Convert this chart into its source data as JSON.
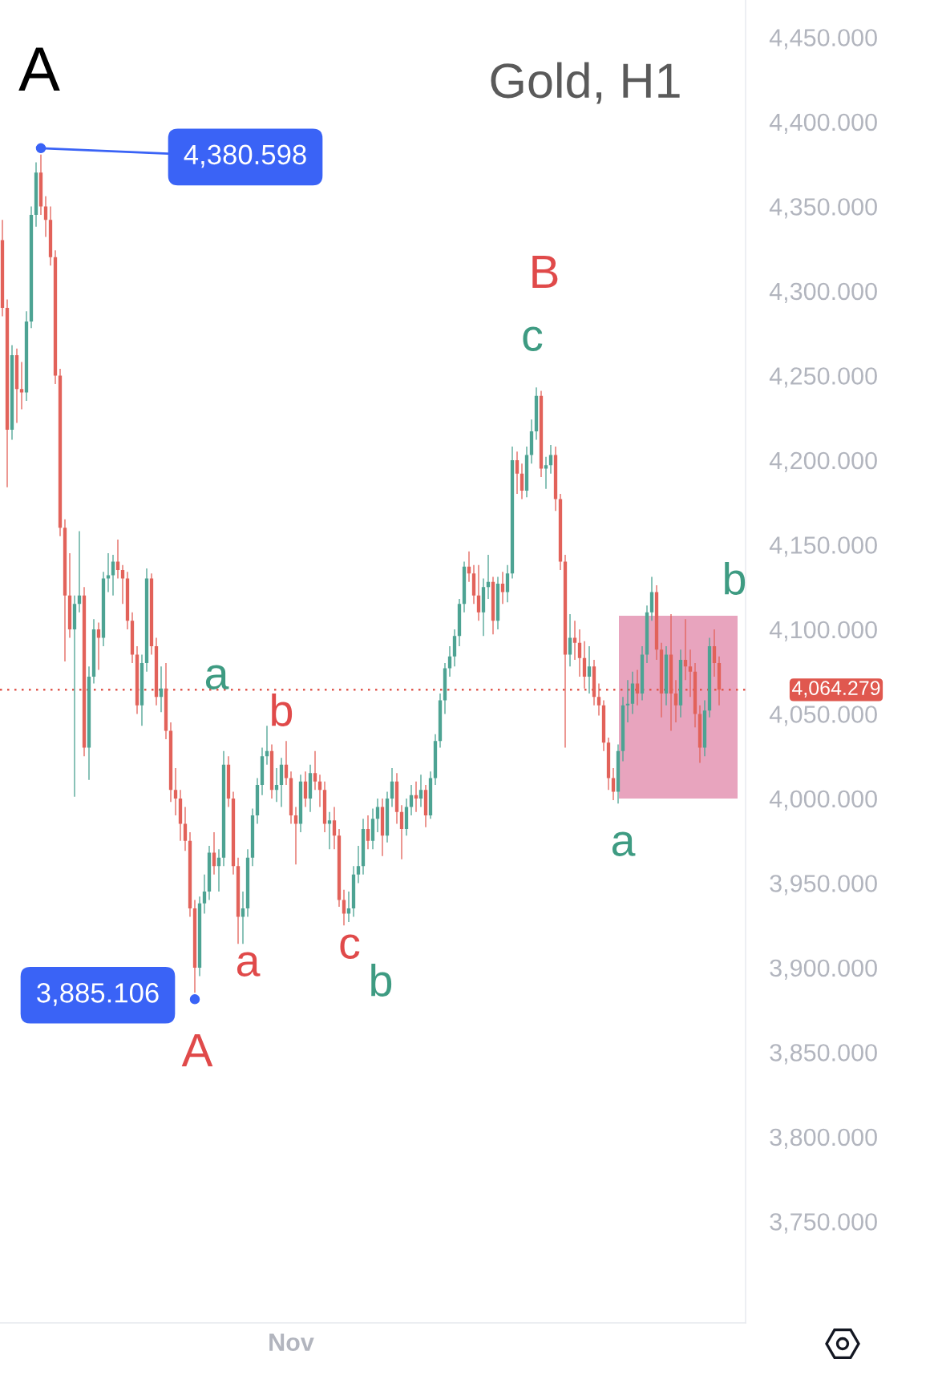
{
  "chart_data": {
    "type": "candlestick",
    "title": "Gold, H1",
    "categories": [
      null,
      null,
      null,
      null,
      null,
      null,
      null,
      null,
      null,
      null,
      null,
      null,
      null,
      null,
      null,
      null,
      null,
      null,
      null,
      null,
      null,
      null,
      null,
      null,
      null,
      null,
      null,
      null,
      null,
      null,
      null,
      null,
      null,
      null,
      null,
      null,
      null,
      null,
      null,
      null,
      null,
      null,
      null,
      null,
      null,
      null,
      null,
      null,
      null,
      null,
      null,
      null,
      null,
      null,
      null,
      null,
      null,
      null,
      null,
      null,
      "Nov",
      null,
      null,
      null,
      null,
      null,
      null,
      null,
      null,
      null,
      null,
      null,
      null,
      null,
      null,
      null,
      null,
      null,
      null,
      null,
      null,
      null,
      null,
      null,
      null,
      null,
      null,
      null,
      null,
      null,
      null,
      null,
      null,
      null,
      null,
      null,
      null,
      null,
      null,
      null,
      null,
      null,
      null,
      null,
      null,
      null,
      null,
      null,
      null,
      null,
      null,
      null,
      null,
      null,
      null,
      null,
      null,
      null,
      null,
      null,
      null,
      null,
      null,
      null,
      null,
      null,
      null,
      null,
      null,
      null,
      null,
      null,
      null,
      null,
      null,
      null,
      null,
      null,
      null,
      null,
      null,
      null,
      null,
      null,
      null,
      null,
      null,
      null,
      null,
      null
    ],
    "ohlc": [
      [
        4330,
        4342,
        4285,
        4290
      ],
      [
        4290,
        4295,
        4184,
        4218
      ],
      [
        4218,
        4268,
        4212,
        4262
      ],
      [
        4262,
        4266,
        4222,
        4242
      ],
      [
        4242,
        4258,
        4230,
        4240
      ],
      [
        4240,
        4288,
        4235,
        4282
      ],
      [
        4282,
        4350,
        4278,
        4345
      ],
      [
        4345,
        4376,
        4338,
        4370
      ],
      [
        4370,
        4380.598,
        4345,
        4350
      ],
      [
        4350,
        4356,
        4332,
        4342
      ],
      [
        4342,
        4350,
        4315,
        4320
      ],
      [
        4320,
        4324,
        4245,
        4250
      ],
      [
        4250,
        4254,
        4155,
        4160
      ],
      [
        4160,
        4165,
        4081,
        4120
      ],
      [
        4120,
        4145,
        4095,
        4100
      ],
      [
        4100,
        4120,
        4001,
        4115
      ],
      [
        4115,
        4158,
        4110,
        4120
      ],
      [
        4120,
        4125,
        4025,
        4030
      ],
      [
        4030,
        4078,
        4011,
        4072
      ],
      [
        4072,
        4106,
        4068,
        4100
      ],
      [
        4100,
        4104,
        4076,
        4095
      ],
      [
        4095,
        4134,
        4090,
        4130
      ],
      [
        4130,
        4145,
        4122,
        4132
      ],
      [
        4132,
        4144,
        4120,
        4140
      ],
      [
        4140,
        4153,
        4130,
        4135
      ],
      [
        4135,
        4138,
        4115,
        4130
      ],
      [
        4130,
        4134,
        4100,
        4105
      ],
      [
        4105,
        4110,
        4080,
        4085
      ],
      [
        4085,
        4090,
        4050,
        4055
      ],
      [
        4055,
        4085,
        4043,
        4080
      ],
      [
        4080,
        4136,
        4075,
        4130
      ],
      [
        4130,
        4133,
        4085,
        4090
      ],
      [
        4090,
        4095,
        4055,
        4060
      ],
      [
        4060,
        4078,
        4051,
        4065
      ],
      [
        4065,
        4080,
        4035,
        4040
      ],
      [
        4040,
        4045,
        3998,
        4005
      ],
      [
        4005,
        4018,
        3990,
        4000
      ],
      [
        4000,
        4005,
        3975,
        3985
      ],
      [
        3985,
        3995,
        3969,
        3975
      ],
      [
        3975,
        3980,
        3930,
        3935
      ],
      [
        3935,
        3940,
        3885.106,
        3900
      ],
      [
        3900,
        3942,
        3895,
        3938
      ],
      [
        3938,
        3955,
        3932,
        3945
      ],
      [
        3945,
        3972,
        3940,
        3968
      ],
      [
        3968,
        3980,
        3955,
        3960
      ],
      [
        3960,
        3970,
        3945,
        3965
      ],
      [
        3965,
        4028,
        3960,
        4020
      ],
      [
        4020,
        4025,
        3995,
        4000
      ],
      [
        4000,
        4004,
        3955,
        3960
      ],
      [
        3960,
        3965,
        3914,
        3930
      ],
      [
        3930,
        3945,
        3914,
        3935
      ],
      [
        3935,
        3970,
        3930,
        3965
      ],
      [
        3965,
        3994,
        3960,
        3990
      ],
      [
        3990,
        4012,
        3985,
        4008
      ],
      [
        4008,
        4030,
        4002,
        4025
      ],
      [
        4025,
        4043,
        4020,
        4028
      ],
      [
        4028,
        4032,
        4000,
        4005
      ],
      [
        4005,
        4018,
        3998,
        4008
      ],
      [
        4008,
        4024,
        3995,
        4020
      ],
      [
        4020,
        4034,
        4008,
        4012
      ],
      [
        4012,
        4016,
        3985,
        3990
      ],
      [
        3990,
        3995,
        3961,
        3985
      ],
      [
        3985,
        4014,
        3980,
        4010
      ],
      [
        4010,
        4016,
        3995,
        4000
      ],
      [
        4000,
        4020,
        3992,
        4015
      ],
      [
        4015,
        4028,
        4005,
        4010
      ],
      [
        4010,
        4014,
        3995,
        4005
      ],
      [
        4005,
        4010,
        3980,
        3985
      ],
      [
        3985,
        3992,
        3970,
        3987
      ],
      [
        3987,
        3995,
        3970,
        3978
      ],
      [
        3978,
        3982,
        3936,
        3940
      ],
      [
        3940,
        3946,
        3925,
        3932
      ],
      [
        3932,
        3945,
        3927,
        3935
      ],
      [
        3935,
        3960,
        3930,
        3955
      ],
      [
        3955,
        3972,
        3950,
        3960
      ],
      [
        3960,
        3988,
        3955,
        3982
      ],
      [
        3982,
        3990,
        3970,
        3975
      ],
      [
        3975,
        3994,
        3970,
        3988
      ],
      [
        3988,
        4000,
        3980,
        3995
      ],
      [
        3995,
        4000,
        3966,
        3978
      ],
      [
        3978,
        4004,
        3974,
        4000
      ],
      [
        4000,
        4018,
        3995,
        4010
      ],
      [
        4010,
        4015,
        3985,
        3992
      ],
      [
        3992,
        3996,
        3964,
        3982
      ],
      [
        3982,
        4000,
        3978,
        3995
      ],
      [
        3995,
        4008,
        3990,
        4002
      ],
      [
        4002,
        4010,
        3992,
        4000
      ],
      [
        4000,
        4014,
        3995,
        4005
      ],
      [
        4005,
        4008,
        3983,
        3990
      ],
      [
        3990,
        4016,
        3988,
        4012
      ],
      [
        4012,
        4038,
        4008,
        4034
      ],
      [
        4034,
        4062,
        4030,
        4058
      ],
      [
        4058,
        4080,
        4050,
        4077
      ],
      [
        4077,
        4090,
        4072,
        4084
      ],
      [
        4084,
        4100,
        4078,
        4096
      ],
      [
        4096,
        4118,
        4090,
        4115
      ],
      [
        4115,
        4140,
        4110,
        4137
      ],
      [
        4137,
        4146,
        4128,
        4133
      ],
      [
        4133,
        4138,
        4115,
        4120
      ],
      [
        4120,
        4138,
        4105,
        4110
      ],
      [
        4110,
        4130,
        4096,
        4125
      ],
      [
        4125,
        4144,
        4118,
        4128
      ],
      [
        4128,
        4131,
        4097,
        4105
      ],
      [
        4105,
        4131,
        4100,
        4127
      ],
      [
        4127,
        4134,
        4115,
        4122
      ],
      [
        4122,
        4138,
        4116,
        4133
      ],
      [
        4133,
        4208,
        4130,
        4200
      ],
      [
        4200,
        4205,
        4180,
        4192
      ],
      [
        4192,
        4198,
        4177,
        4182
      ],
      [
        4182,
        4208,
        4178,
        4203
      ],
      [
        4203,
        4224,
        4198,
        4217
      ],
      [
        4217,
        4243,
        4212,
        4238
      ],
      [
        4238,
        4241,
        4190,
        4195
      ],
      [
        4195,
        4202,
        4183,
        4197
      ],
      [
        4197,
        4209,
        4192,
        4203
      ],
      [
        4203,
        4208,
        4170,
        4177
      ],
      [
        4177,
        4180,
        4135,
        4140
      ],
      [
        4140,
        4144,
        4030,
        4085
      ],
      [
        4085,
        4109,
        4078,
        4095
      ],
      [
        4095,
        4105,
        4082,
        4092
      ],
      [
        4092,
        4100,
        4072,
        4083
      ],
      [
        4083,
        4093,
        4065,
        4072
      ],
      [
        4072,
        4090,
        4062,
        4078
      ],
      [
        4078,
        4082,
        4055,
        4060
      ],
      [
        4060,
        4068,
        4049,
        4055
      ],
      [
        4055,
        4058,
        4028,
        4033
      ],
      [
        4033,
        4036,
        4005,
        4012
      ],
      [
        4012,
        4018,
        3999,
        4004
      ],
      [
        4004,
        4032,
        3997,
        4028
      ],
      [
        4028,
        4060,
        4022,
        4055
      ],
      [
        4055,
        4070,
        4045,
        4056
      ],
      [
        4056,
        4075,
        4050,
        4068
      ],
      [
        4068,
        4076,
        4055,
        4062
      ],
      [
        4062,
        4090,
        4058,
        4085
      ],
      [
        4085,
        4114,
        4080,
        4110
      ],
      [
        4110,
        4131,
        4105,
        4122
      ],
      [
        4122,
        4126,
        4082,
        4088
      ],
      [
        4088,
        4092,
        4048,
        4062
      ],
      [
        4062,
        4090,
        4055,
        4085
      ],
      [
        4085,
        4109,
        4040,
        4062
      ],
      [
        4062,
        4070,
        4045,
        4055
      ],
      [
        4055,
        4088,
        4048,
        4082
      ],
      [
        4082,
        4106,
        4070,
        4078
      ],
      [
        4078,
        4088,
        4060,
        4075
      ],
      [
        4075,
        4080,
        4042,
        4050
      ],
      [
        4050,
        4055,
        4021,
        4030
      ],
      [
        4030,
        4058,
        4025,
        4052
      ],
      [
        4052,
        4095,
        4048,
        4090
      ],
      [
        4090,
        4100,
        4072,
        4080
      ],
      [
        4080,
        4084,
        4055,
        4064.279
      ]
    ],
    "ylim": [
      3690,
      4472
    ],
    "yticks": [
      {
        "value": 3750,
        "label": "3,750.000"
      },
      {
        "value": 3800,
        "label": "3,800.000"
      },
      {
        "value": 3850,
        "label": "3,850.000"
      },
      {
        "value": 3900,
        "label": "3,900.000"
      },
      {
        "value": 3950,
        "label": "3,950.000"
      },
      {
        "value": 4000,
        "label": "4,000.000"
      },
      {
        "value": 4050,
        "label": "4,050.000"
      },
      {
        "value": 4100,
        "label": "4,100.000"
      },
      {
        "value": 4150,
        "label": "4,150.000"
      },
      {
        "value": 4200,
        "label": "4,200.000"
      },
      {
        "value": 4250,
        "label": "4,250.000"
      },
      {
        "value": 4300,
        "label": "4,300.000"
      },
      {
        "value": 4350,
        "label": "4,350.000"
      },
      {
        "value": 4400,
        "label": "4,400.000"
      },
      {
        "value": 4450,
        "label": "4,450.000"
      }
    ],
    "grid": false,
    "ref_lines": [
      {
        "axis": "y",
        "value": 4064.279,
        "label": "4,064.279",
        "color": "#e0584f",
        "line_style": "dotted"
      }
    ],
    "bands": [
      {
        "axis": "y",
        "from": 4000,
        "to": 4108,
        "color": "#e8a4be"
      }
    ],
    "annotations": [
      "A",
      "4,380.598",
      "3,885.106",
      "A",
      "a",
      "b",
      "c",
      "b",
      "a",
      "B",
      "c",
      "a",
      "b"
    ]
  }
}
